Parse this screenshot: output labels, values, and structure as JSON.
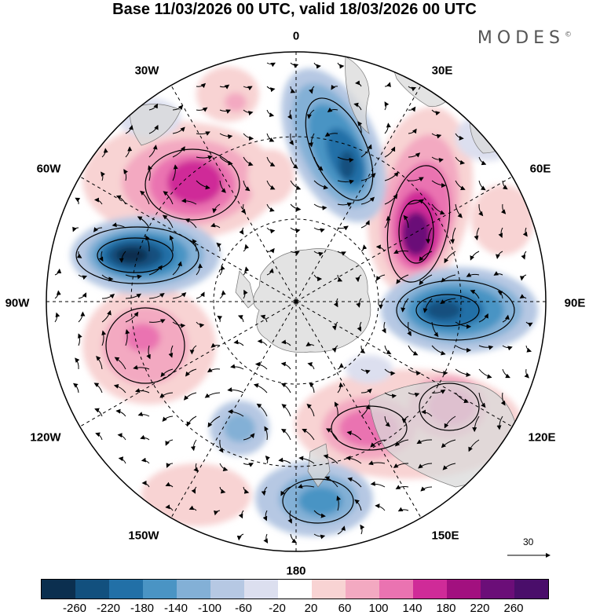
{
  "header": {
    "title": "Base 11/03/2026 00 UTC, valid 18/03/2026 00 UTC",
    "brand": "MODES",
    "brand_mark": "©"
  },
  "map": {
    "projection": "south-polar-stereographic",
    "longitude_labels": [
      "0",
      "30E",
      "60E",
      "90E",
      "120E",
      "150E",
      "180",
      "150W",
      "120W",
      "90W",
      "60W",
      "30W"
    ],
    "reference_vector": {
      "value": "30"
    }
  },
  "legend": {
    "colors": [
      "#0b2f4f",
      "#12507e",
      "#2270a7",
      "#4a94c4",
      "#83b0d6",
      "#b6c8e3",
      "#dcdfef",
      "#ffffff",
      "#f8d3d3",
      "#f3a9c1",
      "#ea73b1",
      "#cf2b98",
      "#a2107f",
      "#6b0e78",
      "#4a0e6a"
    ],
    "ticks": [
      "-260",
      "-220",
      "-180",
      "-140",
      "-100",
      "-60",
      "-20",
      "20",
      "60",
      "100",
      "140",
      "180",
      "220",
      "260"
    ]
  }
}
